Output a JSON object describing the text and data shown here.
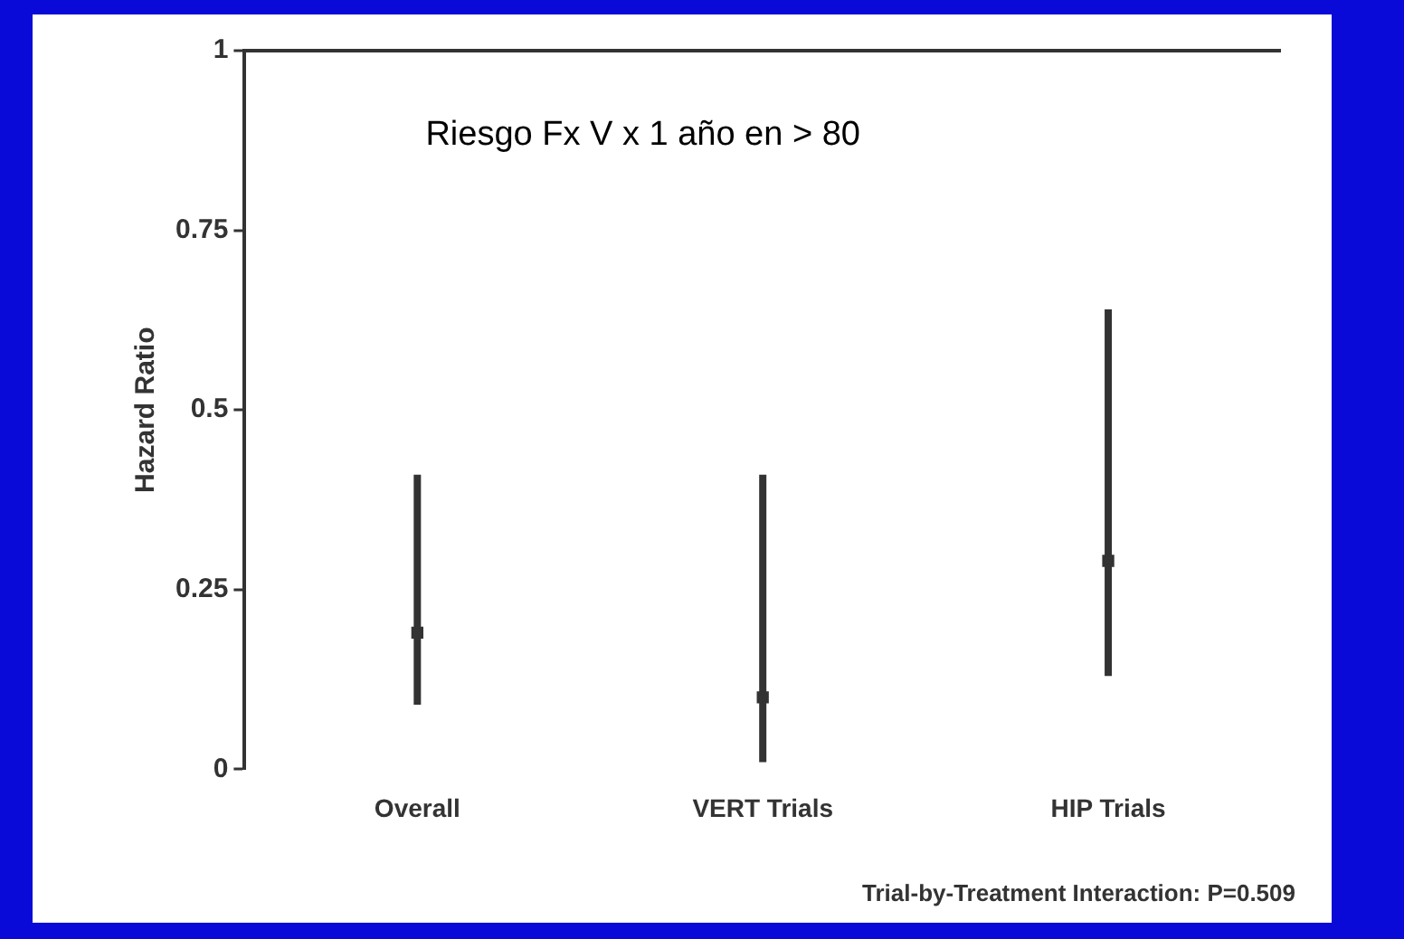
{
  "chart_data": {
    "type": "scatter",
    "ylabel": "Hazard Ratio",
    "categories": [
      "Overall",
      "VERT Trials",
      "HIP Trials"
    ],
    "series": [
      {
        "color": "#333333",
        "values": [
          0.19,
          0.1,
          0.29
        ],
        "errors": [
          [
            0.09,
            0.41
          ],
          [
            0.01,
            0.41
          ],
          [
            0.13,
            0.64
          ]
        ]
      }
    ],
    "marker": "square",
    "ylim": [
      0,
      1
    ],
    "yticks": [
      0,
      0.25,
      0.5,
      0.75,
      1
    ],
    "grid": false,
    "legend": false,
    "annotations": [
      "Riesgo Fx V x 1 año en > 80",
      "Trial-by-Treatment Interaction: P=0.509"
    ]
  }
}
